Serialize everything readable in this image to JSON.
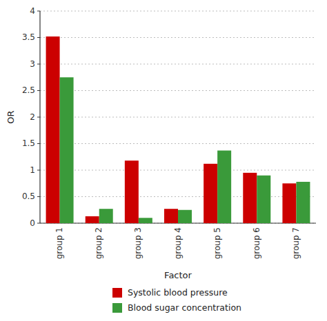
{
  "chart_data": {
    "type": "bar",
    "xlabel": "Factor",
    "ylabel": "OR",
    "categories": [
      "group 1",
      "group 2",
      "group 3",
      "group 4",
      "group 5",
      "group 6",
      "group 7"
    ],
    "series": [
      {
        "name": "Systolic blood pressure",
        "color": "#cc0000",
        "values": [
          3.52,
          0.13,
          1.18,
          0.27,
          1.12,
          0.95,
          0.75
        ]
      },
      {
        "name": "Blood sugar concentration",
        "color": "#3a9a3a",
        "values": [
          2.75,
          0.27,
          0.1,
          0.25,
          1.37,
          0.9,
          0.78
        ]
      }
    ],
    "ylim": [
      0,
      4.0
    ],
    "yticks": [
      0,
      0.5,
      1,
      1.5,
      2,
      2.5,
      3,
      3.5,
      4
    ],
    "grid": true,
    "legend": "bottom"
  }
}
